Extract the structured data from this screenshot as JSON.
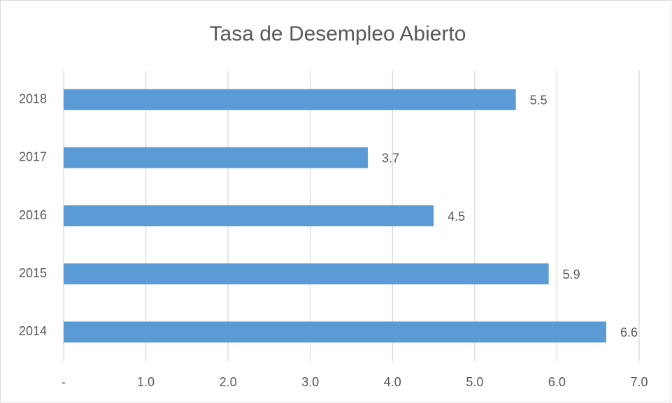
{
  "chart_data": {
    "type": "barh",
    "title": "Tasa de Desempleo Abierto",
    "categories": [
      "2018",
      "2017",
      "2016",
      "2015",
      "2014"
    ],
    "values": [
      5.5,
      3.7,
      4.5,
      5.9,
      6.6
    ],
    "color": "#5b9bd5",
    "xlim": [
      0,
      7
    ],
    "xticks": [
      {
        "value": 0,
        "label": "-"
      },
      {
        "value": 1,
        "label": "1.0"
      },
      {
        "value": 2,
        "label": "2.0"
      },
      {
        "value": 3,
        "label": "3.0"
      },
      {
        "value": 4,
        "label": "4.0"
      },
      {
        "value": 5,
        "label": "5.0"
      },
      {
        "value": 6,
        "label": "6.0"
      },
      {
        "value": 7,
        "label": "7.0"
      }
    ],
    "grid": true
  }
}
